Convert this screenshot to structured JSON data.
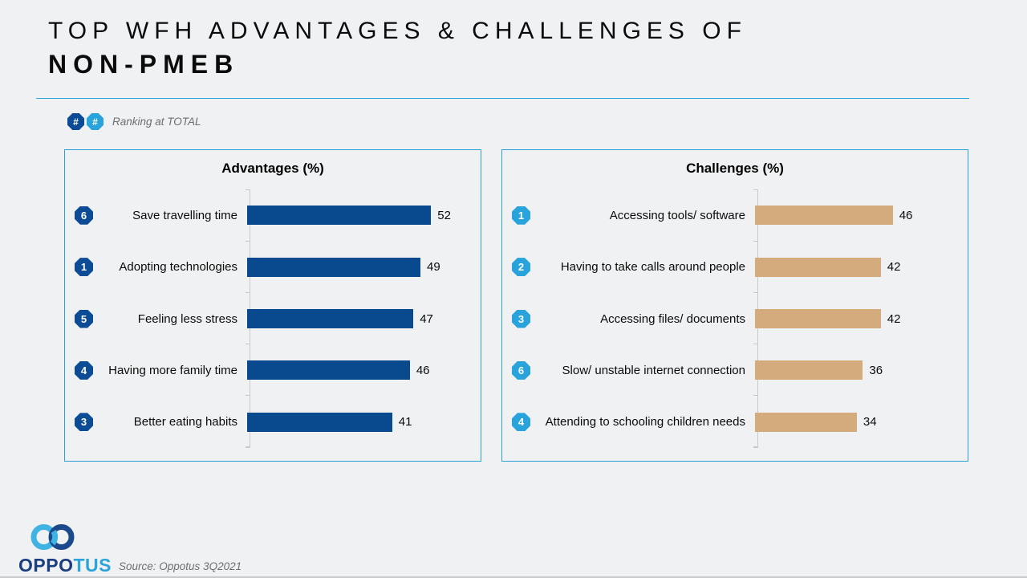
{
  "page": {
    "title_line1": "TOP WFH ADVANTAGES & CHALLENGES OF",
    "title_line2": "NON-PMEB",
    "source": "Source: Oppotus 3Q2021"
  },
  "legend": {
    "badge_dark": "#",
    "badge_light": "#",
    "label": "Ranking at TOTAL"
  },
  "logo": {
    "text_primary": "OPPO",
    "text_secondary": "TUS"
  },
  "colors": {
    "background": "#F0F1F2",
    "panel_border": "#2AA0DA",
    "advantages_bar": "#09498E",
    "advantages_badge": "#0C4C96",
    "challenges_bar": "#D3AB7C",
    "challenges_badge": "#29A3DC",
    "rule": "#2AA0DA",
    "muted_text": "#6d6e70"
  },
  "chart_data": [
    {
      "type": "bar",
      "orientation": "horizontal",
      "title": "Advantages (%)",
      "categories": [
        "Save travelling time",
        "Adopting technologies",
        "Feeling less stress",
        "Having more family time",
        "Better eating habits"
      ],
      "values": [
        52,
        49,
        47,
        46,
        41
      ],
      "rankings": [
        6,
        1,
        5,
        4,
        3
      ],
      "bar_color": "#09498E",
      "badge_color": "#0C4C96",
      "xlim": [
        0,
        66
      ],
      "grid": false,
      "value_labels": "outside-end"
    },
    {
      "type": "bar",
      "orientation": "horizontal",
      "title": "Challenges (%)",
      "categories": [
        "Accessing tools/ software",
        "Having to take calls around people",
        "Accessing files/ documents",
        "Slow/ unstable internet connection",
        "Attending to schooling children needs"
      ],
      "values": [
        46,
        42,
        42,
        36,
        34
      ],
      "rankings": [
        1,
        2,
        3,
        6,
        4
      ],
      "bar_color": "#D3AB7C",
      "badge_color": "#29A3DC",
      "xlim": [
        0,
        71
      ],
      "grid": false,
      "value_labels": "outside-end"
    }
  ]
}
